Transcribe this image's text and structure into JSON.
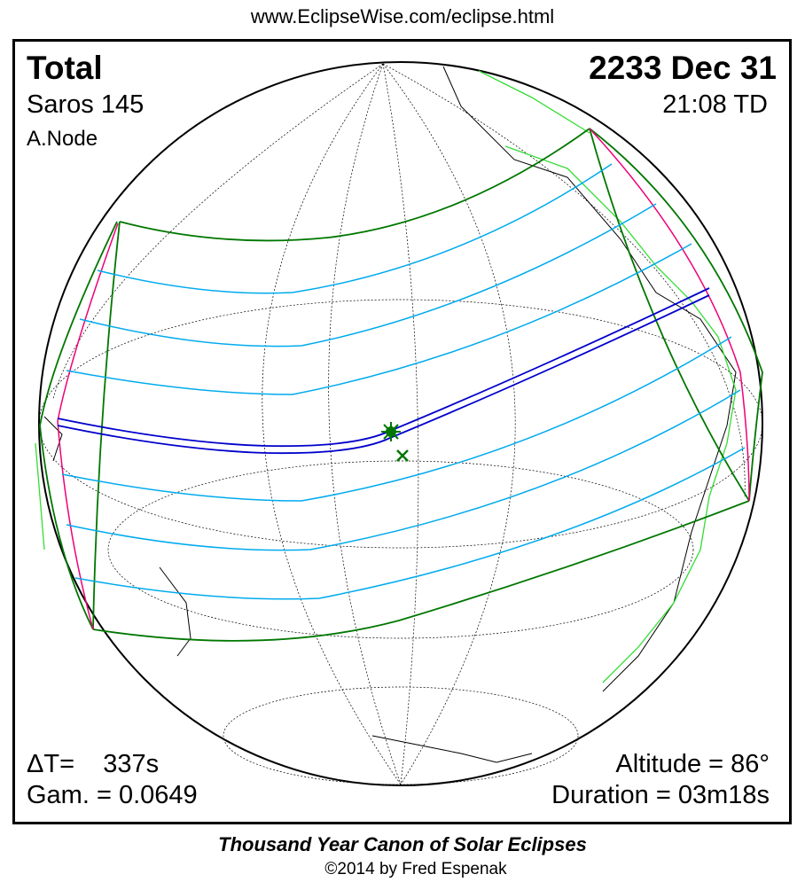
{
  "header": {
    "url": "www.EclipseWise.com/eclipse.html"
  },
  "eclipse": {
    "type": "Total",
    "saros": "Saros 145",
    "node": "A.Node",
    "date": "2233 Dec 31",
    "time": "21:08 TD",
    "delta_t": "ΔT=    337s",
    "gamma": "Gam. = 0.0649",
    "altitude": "Altitude = 86°",
    "duration": "Duration = 03m18s"
  },
  "footer": {
    "title": "Thousand Year Canon of Solar Eclipses",
    "copyright": "©2014 by Fred Espenak"
  },
  "colors": {
    "central": "#0000cc",
    "contours": "#00aaee",
    "limits": "#007700",
    "edge": "#ee0077",
    "coast": "#33dd33"
  }
}
